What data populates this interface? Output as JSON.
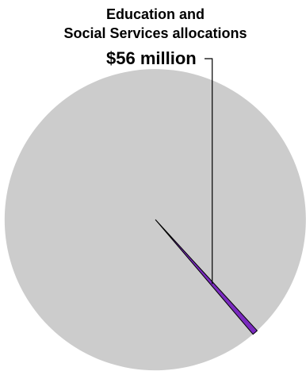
{
  "chart_data": {
    "type": "pie",
    "title": "",
    "annotation": {
      "label_line1": "Education and",
      "label_line2": "Social Services allocations",
      "value_label": "$56 million"
    },
    "slices": [
      {
        "label": "Education and Social Services allocations",
        "value": 56,
        "color": "#7a2bbf"
      },
      {
        "label": "",
        "value": 9644,
        "color": "#cccccc"
      }
    ],
    "legend": "none",
    "grid": false
  }
}
